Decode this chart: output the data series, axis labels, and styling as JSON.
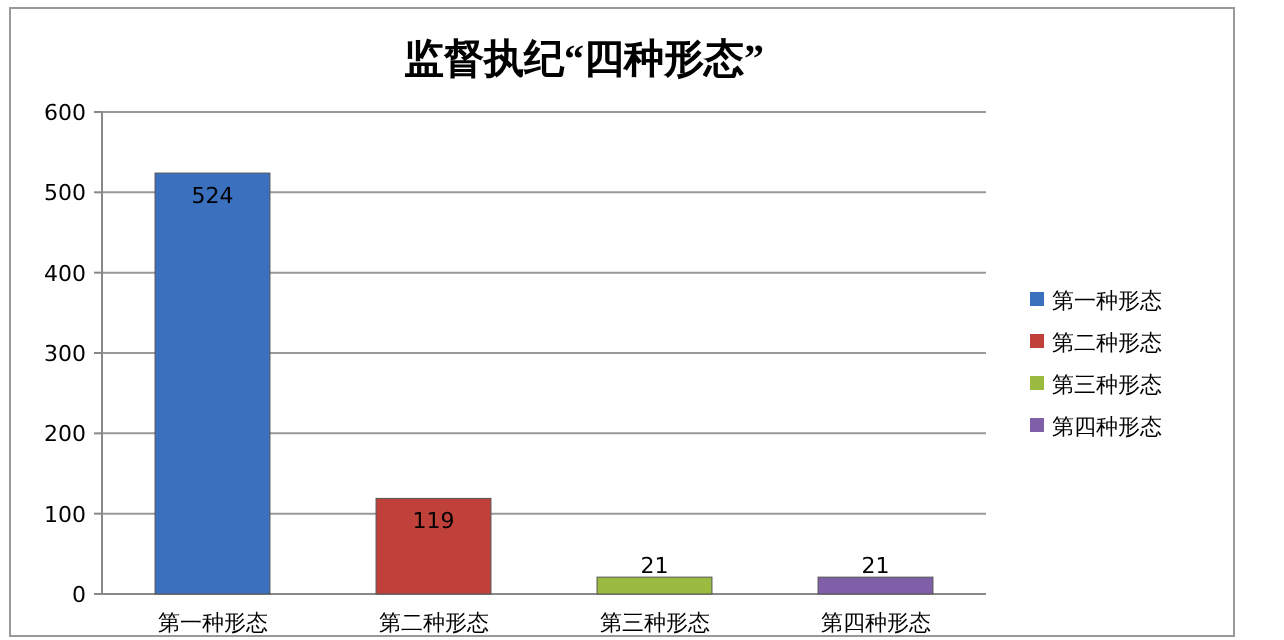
{
  "chart_data": {
    "type": "bar",
    "title": "监督执纪“四种形态”",
    "categories": [
      "第一种形态",
      "第二种形态",
      "第三种形态",
      "第四种形态"
    ],
    "series": [
      {
        "name": "第一种形态",
        "color": "#3a70be",
        "values": [
          524,
          null,
          null,
          null
        ]
      },
      {
        "name": "第二种形态",
        "color": "#c0403a",
        "values": [
          null,
          119,
          null,
          null
        ]
      },
      {
        "name": "第三种形态",
        "color": "#9bbb40",
        "values": [
          null,
          null,
          21,
          null
        ]
      },
      {
        "name": "第四种形态",
        "color": "#7f5fa8",
        "values": [
          null,
          null,
          null,
          21
        ]
      }
    ],
    "ylim": [
      0,
      600
    ],
    "yticks": [
      0,
      100,
      200,
      300,
      400,
      500,
      600
    ],
    "grid": "y",
    "legend": "right",
    "data_labels": true
  }
}
